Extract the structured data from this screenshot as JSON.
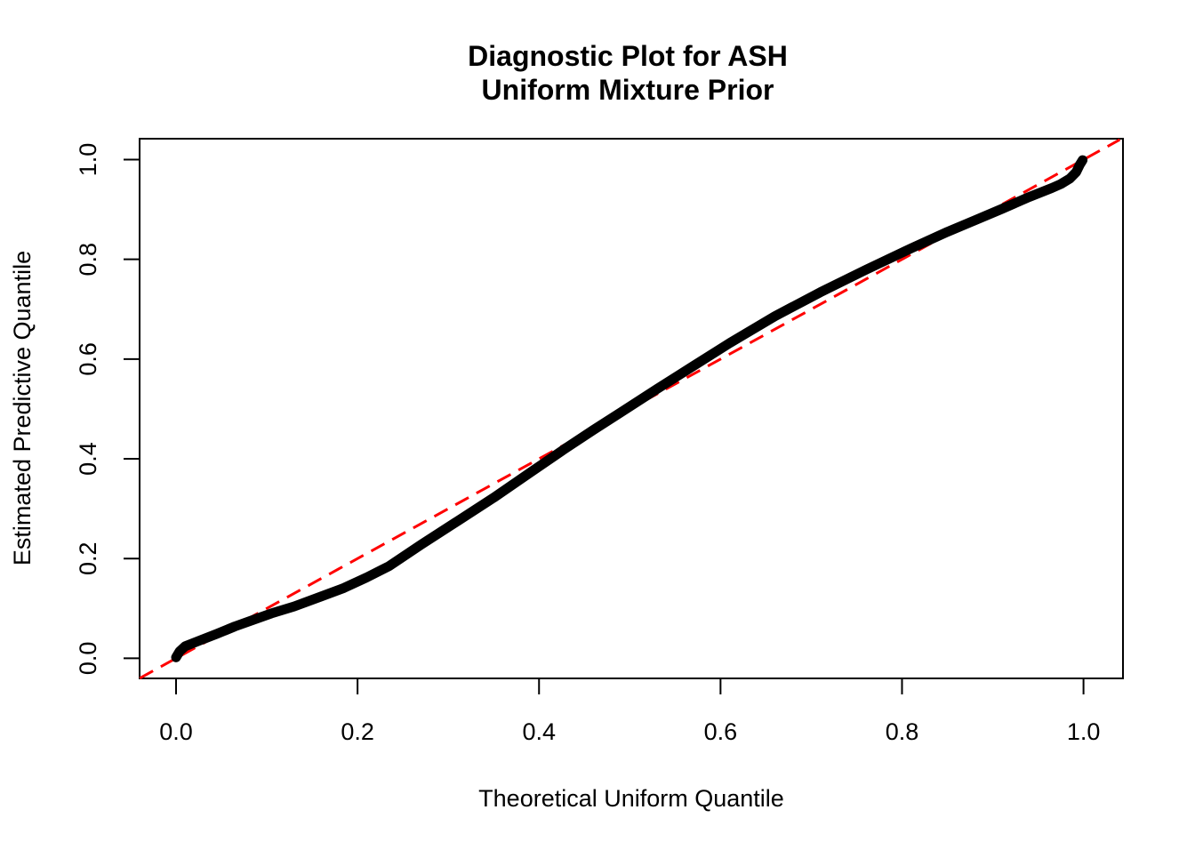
{
  "figure": {
    "title_line1": "Diagnostic Plot for ASH",
    "title_line2": "Uniform Mixture Prior",
    "xlabel": "Theoretical Uniform Quantile",
    "ylabel": "Estimated Predictive Quantile"
  },
  "colors": {
    "background": "#FFFFFF",
    "axis": "#000000",
    "curve": "#000000",
    "reference_line": "#FF0000"
  },
  "chart_data": {
    "type": "line",
    "subtype": "qq-plot",
    "title": "Diagnostic Plot for ASH Uniform Mixture Prior",
    "xlabel": "Theoretical Uniform Quantile",
    "ylabel": "Estimated Predictive Quantile",
    "xlim": [
      -0.04,
      1.04
    ],
    "ylim": [
      -0.04,
      1.04
    ],
    "x_ticks": [
      0.0,
      0.2,
      0.4,
      0.6,
      0.8,
      1.0
    ],
    "y_ticks": [
      0.0,
      0.2,
      0.4,
      0.6,
      0.8,
      1.0
    ],
    "grid": false,
    "legend": null,
    "series": [
      {
        "name": "estimated-vs-theoretical-quantile-curve",
        "style": "solid",
        "color": "#000000",
        "line_width": 11,
        "points": [
          [
            0.0,
            0.002
          ],
          [
            0.004,
            0.014
          ],
          [
            0.01,
            0.024
          ],
          [
            0.025,
            0.035
          ],
          [
            0.045,
            0.049
          ],
          [
            0.065,
            0.064
          ],
          [
            0.085,
            0.077
          ],
          [
            0.105,
            0.09
          ],
          [
            0.13,
            0.104
          ],
          [
            0.16,
            0.124
          ],
          [
            0.185,
            0.141
          ],
          [
            0.21,
            0.162
          ],
          [
            0.235,
            0.185
          ],
          [
            0.27,
            0.228
          ],
          [
            0.31,
            0.275
          ],
          [
            0.35,
            0.322
          ],
          [
            0.39,
            0.372
          ],
          [
            0.43,
            0.422
          ],
          [
            0.46,
            0.458
          ],
          [
            0.49,
            0.493
          ],
          [
            0.53,
            0.54
          ],
          [
            0.57,
            0.586
          ],
          [
            0.61,
            0.632
          ],
          [
            0.66,
            0.686
          ],
          [
            0.71,
            0.734
          ],
          [
            0.76,
            0.779
          ],
          [
            0.81,
            0.822
          ],
          [
            0.85,
            0.855
          ],
          [
            0.88,
            0.878
          ],
          [
            0.91,
            0.901
          ],
          [
            0.94,
            0.925
          ],
          [
            0.965,
            0.943
          ],
          [
            0.975,
            0.951
          ],
          [
            0.985,
            0.962
          ],
          [
            0.992,
            0.975
          ],
          [
            0.996,
            0.99
          ],
          [
            0.999,
            0.999
          ]
        ]
      },
      {
        "name": "y-equals-x-reference-line",
        "style": "dashed",
        "color": "#FF0000",
        "line_width": 3,
        "points": [
          [
            -0.04,
            -0.04
          ],
          [
            1.04,
            1.04
          ]
        ]
      }
    ]
  }
}
